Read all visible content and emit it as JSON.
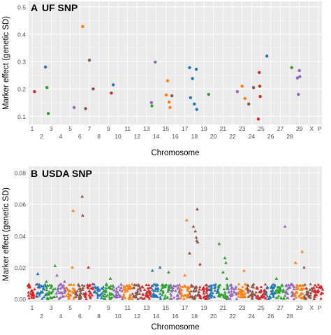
{
  "figure": {
    "ylabel": "Marker effect (genetic SD)",
    "xlabel": "Chromosome"
  },
  "chart_data": [
    {
      "panel": "A",
      "type": "scatter",
      "title": "UF SNP",
      "xlabel": "Chromosome",
      "ylabel": "Marker effect (genetic SD)",
      "ylim": [
        0.07,
        0.52
      ],
      "yticks": [
        0.1,
        0.2,
        0.3,
        0.4,
        0.5
      ],
      "grid": true,
      "background": "#ebebeb",
      "chromosomes": [
        "1",
        "2",
        "3",
        "4",
        "5",
        "6",
        "7",
        "8",
        "9",
        "10",
        "11",
        "12",
        "13",
        "14",
        "15",
        "16",
        "17",
        "18",
        "19",
        "20",
        "21",
        "22",
        "23",
        "24",
        "25",
        "26",
        "27",
        "28",
        "29",
        "X",
        "P"
      ],
      "points": [
        {
          "x": 1.25,
          "y": 0.19,
          "color": "#d62728"
        },
        {
          "x": 2.4,
          "y": 0.28,
          "color": "#1f77b4"
        },
        {
          "x": 2.55,
          "y": 0.205,
          "color": "#2ca02c"
        },
        {
          "x": 2.7,
          "y": 0.11,
          "color": "#2ca02c"
        },
        {
          "x": 5.4,
          "y": 0.132,
          "color": "#9467bd"
        },
        {
          "x": 6.3,
          "y": 0.428,
          "color": "#ff7f0e"
        },
        {
          "x": 6.6,
          "y": 0.128,
          "color": "#8c564b"
        },
        {
          "x": 7.0,
          "y": 0.305,
          "color": "#8c564b"
        },
        {
          "x": 7.4,
          "y": 0.2,
          "color": "#8c564b"
        },
        {
          "x": 9.3,
          "y": 0.185,
          "color": "#d62728"
        },
        {
          "x": 9.5,
          "y": 0.215,
          "color": "#1f77b4"
        },
        {
          "x": 13.5,
          "y": 0.15,
          "color": "#9467bd"
        },
        {
          "x": 13.55,
          "y": 0.138,
          "color": "#2ca02c"
        },
        {
          "x": 13.9,
          "y": 0.298,
          "color": "#9467bd"
        },
        {
          "x": 15.05,
          "y": 0.178,
          "color": "#ff7f0e"
        },
        {
          "x": 15.2,
          "y": 0.23,
          "color": "#ff7f0e"
        },
        {
          "x": 15.35,
          "y": 0.152,
          "color": "#ff7f0e"
        },
        {
          "x": 15.45,
          "y": 0.132,
          "color": "#ff7f0e"
        },
        {
          "x": 15.65,
          "y": 0.175,
          "color": "#8c564b"
        },
        {
          "x": 17.5,
          "y": 0.278,
          "color": "#1f77b4"
        },
        {
          "x": 17.6,
          "y": 0.168,
          "color": "#1f77b4"
        },
        {
          "x": 17.8,
          "y": 0.238,
          "color": "#1f77b4"
        },
        {
          "x": 18.0,
          "y": 0.145,
          "color": "#1f77b4"
        },
        {
          "x": 18.2,
          "y": 0.272,
          "color": "#1f77b4"
        },
        {
          "x": 18.25,
          "y": 0.125,
          "color": "#1f77b4"
        },
        {
          "x": 19.5,
          "y": 0.18,
          "color": "#2ca02c"
        },
        {
          "x": 22.5,
          "y": 0.19,
          "color": "#9467bd"
        },
        {
          "x": 23.0,
          "y": 0.21,
          "color": "#ff7f0e"
        },
        {
          "x": 23.3,
          "y": 0.165,
          "color": "#ff7f0e"
        },
        {
          "x": 23.7,
          "y": 0.145,
          "color": "#8c564b"
        },
        {
          "x": 24.2,
          "y": 0.205,
          "color": "#8c564b"
        },
        {
          "x": 24.8,
          "y": 0.26,
          "color": "#d62728"
        },
        {
          "x": 24.85,
          "y": 0.21,
          "color": "#d62728"
        },
        {
          "x": 24.9,
          "y": 0.172,
          "color": "#d62728"
        },
        {
          "x": 24.7,
          "y": 0.09,
          "color": "#d62728"
        },
        {
          "x": 25.6,
          "y": 0.32,
          "color": "#1f77b4"
        },
        {
          "x": 28.2,
          "y": 0.278,
          "color": "#2ca02c"
        },
        {
          "x": 28.8,
          "y": 0.24,
          "color": "#9467bd"
        },
        {
          "x": 29.0,
          "y": 0.267,
          "color": "#9467bd"
        },
        {
          "x": 29.05,
          "y": 0.245,
          "color": "#9467bd"
        },
        {
          "x": 28.9,
          "y": 0.18,
          "color": "#9467bd"
        }
      ]
    },
    {
      "panel": "B",
      "type": "scatter",
      "title": "USDA SNP",
      "xlabel": "Chromosome",
      "ylabel": "Marker effect (genetic SD)",
      "ylim": [
        -0.002,
        0.084
      ],
      "yticks": [
        0.0,
        0.02,
        0.04,
        0.06,
        0.08
      ],
      "ytick_labels": [
        "0.00",
        "0.02",
        "0.04",
        "0.06",
        "0.08"
      ],
      "grid": true,
      "background": "#ebebeb",
      "chromosomes": [
        "1",
        "2",
        "3",
        "4",
        "5",
        "6",
        "7",
        "8",
        "9",
        "10",
        "11",
        "12",
        "13",
        "14",
        "15",
        "16",
        "17",
        "18",
        "19",
        "20",
        "21",
        "22",
        "23",
        "24",
        "25",
        "26",
        "27",
        "28",
        "29",
        "X",
        "P"
      ],
      "point_shape": "triangle",
      "band_max": 0.0095,
      "outliers": [
        {
          "x": 1.6,
          "y": 0.016
        },
        {
          "x": 2.5,
          "y": 0.011
        },
        {
          "x": 3.4,
          "y": 0.021
        },
        {
          "x": 3.6,
          "y": 0.015
        },
        {
          "x": 4.4,
          "y": 0.011
        },
        {
          "x": 5.3,
          "y": 0.056
        },
        {
          "x": 5.2,
          "y": 0.02
        },
        {
          "x": 6.25,
          "y": 0.065
        },
        {
          "x": 6.3,
          "y": 0.053
        },
        {
          "x": 6.9,
          "y": 0.02
        },
        {
          "x": 9.2,
          "y": 0.013
        },
        {
          "x": 13.6,
          "y": 0.018
        },
        {
          "x": 14.4,
          "y": 0.02
        },
        {
          "x": 15.3,
          "y": 0.017
        },
        {
          "x": 17.2,
          "y": 0.05
        },
        {
          "x": 17.5,
          "y": 0.029
        },
        {
          "x": 17.9,
          "y": 0.046
        },
        {
          "x": 18.1,
          "y": 0.043
        },
        {
          "x": 18.3,
          "y": 0.057
        },
        {
          "x": 18.2,
          "y": 0.039
        },
        {
          "x": 18.25,
          "y": 0.037
        },
        {
          "x": 18.35,
          "y": 0.036
        },
        {
          "x": 17.0,
          "y": 0.015
        },
        {
          "x": 18.6,
          "y": 0.022
        },
        {
          "x": 20.6,
          "y": 0.035
        },
        {
          "x": 21.2,
          "y": 0.026
        },
        {
          "x": 21.3,
          "y": 0.023
        },
        {
          "x": 21.0,
          "y": 0.017
        },
        {
          "x": 21.4,
          "y": 0.013
        },
        {
          "x": 23.2,
          "y": 0.018
        },
        {
          "x": 27.5,
          "y": 0.046
        },
        {
          "x": 28.6,
          "y": 0.023
        },
        {
          "x": 29.3,
          "y": 0.03
        },
        {
          "x": 29.5,
          "y": 0.02
        },
        {
          "x": 26.6,
          "y": 0.013
        }
      ]
    }
  ],
  "palette": [
    "#d62728",
    "#1f77b4",
    "#2ca02c",
    "#9467bd",
    "#ff7f0e",
    "#8c564b"
  ]
}
